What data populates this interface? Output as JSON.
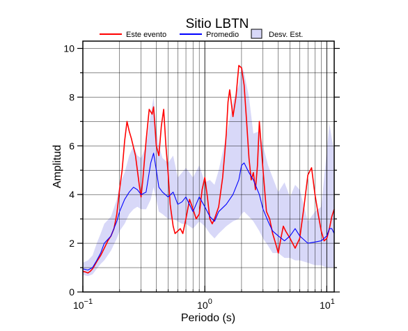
{
  "chart_data": {
    "type": "line",
    "title": "Sitio LBTN",
    "xlabel": "Periodo (s)",
    "ylabel": "Amplitud",
    "x_scale": "log",
    "xlim": [
      0.1,
      11.5
    ],
    "ylim": [
      0,
      10.3
    ],
    "grid": true,
    "legend_position": "top",
    "x_ticks": [
      {
        "value": 0.1,
        "base": "10",
        "exp": "−1"
      },
      {
        "value": 1,
        "base": "10",
        "exp": "0"
      },
      {
        "value": 10,
        "base": "10",
        "exp": "1"
      }
    ],
    "y_ticks": [
      0,
      2,
      4,
      6,
      8,
      10
    ],
    "legend": [
      {
        "key": "este",
        "label": "Este evento",
        "kind": "line",
        "color": "#ff0000"
      },
      {
        "key": "prom",
        "label": "Promedio",
        "kind": "line",
        "color": "#0000ff"
      },
      {
        "key": "desv",
        "label": "Desv. Est.",
        "kind": "band",
        "color": "#d8d8f8"
      }
    ],
    "series": [
      {
        "name": "Este evento",
        "key": "este",
        "color": "#ff0000",
        "x": [
          0.1,
          0.105,
          0.11,
          0.115,
          0.12,
          0.125,
          0.13,
          0.14,
          0.15,
          0.16,
          0.17,
          0.18,
          0.19,
          0.2,
          0.21,
          0.22,
          0.23,
          0.24,
          0.25,
          0.27,
          0.29,
          0.3,
          0.31,
          0.33,
          0.35,
          0.37,
          0.38,
          0.4,
          0.42,
          0.44,
          0.46,
          0.48,
          0.5,
          0.52,
          0.55,
          0.57,
          0.6,
          0.63,
          0.66,
          0.7,
          0.75,
          0.8,
          0.85,
          0.9,
          0.95,
          1.0,
          1.05,
          1.1,
          1.15,
          1.2,
          1.3,
          1.4,
          1.45,
          1.5,
          1.55,
          1.6,
          1.7,
          1.8,
          1.9,
          2.0,
          2.1,
          2.2,
          2.3,
          2.4,
          2.5,
          2.6,
          2.7,
          2.8,
          3.0,
          3.2,
          3.4,
          3.6,
          3.8,
          4.0,
          4.2,
          4.4,
          4.6,
          5.0,
          5.5,
          6.0,
          6.5,
          7.0,
          7.5,
          8.0,
          8.5,
          9.0,
          9.5,
          10.0,
          10.5,
          11.0,
          11.5
        ],
        "y": [
          0.85,
          0.82,
          0.78,
          0.85,
          0.95,
          1.1,
          1.25,
          1.5,
          1.8,
          2.1,
          2.3,
          2.6,
          3.2,
          4.2,
          5.0,
          6.2,
          7.0,
          6.6,
          6.3,
          5.6,
          4.4,
          3.9,
          4.6,
          6.2,
          7.5,
          7.3,
          7.6,
          6.0,
          5.6,
          6.8,
          7.5,
          6.0,
          4.9,
          3.6,
          2.7,
          2.4,
          2.5,
          2.6,
          2.4,
          3.0,
          3.8,
          3.4,
          3.0,
          3.2,
          4.2,
          4.7,
          3.9,
          3.0,
          2.8,
          3.0,
          3.5,
          4.7,
          5.6,
          6.5,
          7.8,
          8.3,
          7.2,
          8.0,
          9.3,
          9.2,
          8.5,
          7.0,
          5.5,
          4.6,
          4.9,
          4.2,
          5.2,
          7.0,
          5.0,
          3.3,
          3.0,
          2.4,
          2.0,
          1.6,
          2.2,
          2.7,
          2.5,
          2.2,
          1.8,
          2.2,
          3.5,
          4.8,
          5.1,
          4.0,
          3.2,
          2.5,
          2.1,
          2.2,
          2.6,
          3.1,
          3.4
        ]
      },
      {
        "name": "Promedio",
        "key": "prom",
        "color": "#0000ff",
        "x": [
          0.1,
          0.11,
          0.12,
          0.13,
          0.14,
          0.15,
          0.17,
          0.19,
          0.2,
          0.22,
          0.24,
          0.26,
          0.28,
          0.3,
          0.33,
          0.36,
          0.38,
          0.4,
          0.42,
          0.45,
          0.5,
          0.55,
          0.6,
          0.65,
          0.7,
          0.8,
          0.9,
          1.0,
          1.1,
          1.2,
          1.3,
          1.5,
          1.7,
          1.9,
          2.0,
          2.1,
          2.3,
          2.5,
          2.8,
          3.0,
          3.3,
          3.6,
          4.0,
          4.5,
          5.0,
          5.5,
          6.0,
          7.0,
          8.0,
          9.0,
          10.0,
          10.5,
          11.0,
          11.5
        ],
        "y": [
          0.95,
          0.9,
          1.0,
          1.3,
          1.6,
          2.0,
          2.3,
          2.9,
          3.3,
          3.8,
          4.1,
          4.3,
          4.2,
          4.0,
          4.1,
          5.3,
          5.7,
          5.0,
          4.3,
          4.1,
          3.9,
          4.1,
          3.6,
          3.7,
          3.9,
          3.3,
          3.9,
          3.5,
          3.1,
          2.9,
          3.3,
          3.6,
          4.0,
          4.6,
          5.2,
          5.3,
          4.9,
          4.6,
          4.0,
          3.4,
          2.9,
          2.5,
          2.3,
          2.1,
          2.3,
          2.6,
          2.3,
          2.0,
          2.05,
          2.1,
          2.3,
          2.6,
          2.6,
          2.4
        ]
      }
    ],
    "band": {
      "name": "Desv. Est.",
      "key": "desv",
      "color": "#d8d8f8",
      "x": [
        0.1,
        0.11,
        0.12,
        0.13,
        0.14,
        0.15,
        0.17,
        0.19,
        0.2,
        0.22,
        0.24,
        0.26,
        0.28,
        0.3,
        0.33,
        0.36,
        0.38,
        0.4,
        0.42,
        0.45,
        0.5,
        0.55,
        0.6,
        0.65,
        0.7,
        0.8,
        0.9,
        1.0,
        1.1,
        1.2,
        1.3,
        1.5,
        1.7,
        1.9,
        2.0,
        2.1,
        2.3,
        2.5,
        2.8,
        3.0,
        3.3,
        3.6,
        4.0,
        4.5,
        5.0,
        5.5,
        6.0,
        7.0,
        8.0,
        9.0,
        10.0,
        10.5,
        11.0,
        11.5
      ],
      "lower": [
        0.7,
        0.65,
        0.72,
        0.95,
        1.15,
        1.3,
        1.7,
        2.2,
        2.5,
        2.8,
        3.2,
        3.4,
        3.5,
        3.4,
        3.4,
        3.8,
        4.3,
        3.8,
        3.3,
        3.2,
        3.0,
        3.0,
        2.9,
        2.8,
        2.8,
        2.6,
        2.9,
        2.7,
        2.4,
        2.2,
        2.4,
        2.7,
        2.9,
        3.0,
        3.2,
        3.3,
        3.1,
        2.9,
        2.5,
        2.2,
        1.9,
        1.6,
        1.6,
        1.4,
        1.4,
        1.3,
        1.3,
        1.2,
        1.1,
        1.1,
        1.0,
        1.0,
        1.0,
        1.0
      ],
      "upper": [
        1.2,
        1.3,
        1.5,
        2.0,
        2.4,
        2.8,
        3.1,
        3.8,
        4.4,
        4.9,
        5.6,
        6.0,
        5.6,
        5.5,
        6.0,
        7.3,
        8.0,
        6.7,
        6.0,
        5.5,
        5.3,
        5.6,
        4.7,
        4.9,
        5.1,
        4.7,
        5.2,
        4.5,
        4.6,
        4.4,
        5.0,
        6.4,
        7.8,
        8.5,
        9.3,
        9.0,
        8.0,
        6.5,
        6.6,
        6.0,
        5.2,
        4.7,
        4.1,
        4.5,
        3.9,
        4.4,
        4.2,
        2.9,
        3.3,
        3.5,
        5.8,
        6.9,
        6.3,
        5.8
      ]
    }
  }
}
